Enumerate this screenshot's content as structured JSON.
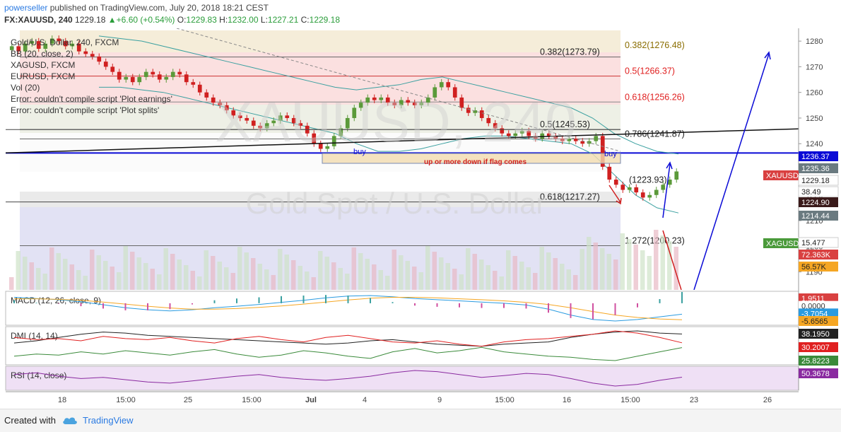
{
  "header": {
    "user": "powerseller",
    "published_text": "published on TradingView.com, July 20, 2018 18:21 CEST",
    "symbol": "FX:XAUUSD, 240",
    "last": "1229.18",
    "change": "+6.60 (+0.54%)",
    "o_label": "O:",
    "o": "1229.83",
    "h_label": "H:",
    "h": "1232.00",
    "l_label": "L:",
    "l": "1227.21",
    "c_label": "C:",
    "c": "1229.18"
  },
  "legend": [
    "Gold/U.S. Dollar, 240, FXCM",
    "BB (20, close, 2)",
    "XAGUSD, FXCM",
    "EURUSD, FXCM",
    "Vol (20)",
    "Error: couldn't compile script 'Plot earnings'",
    "Error: couldn't compile script 'Plot splits'"
  ],
  "watermark": {
    "symbol": "XAUUSD, 240",
    "name": "Gold Spot / U.S. Dollar"
  },
  "annotations": {
    "buy_1": "buy",
    "buy_2": "buy",
    "flag_note": "up or more down if flag comes"
  },
  "footer": {
    "created_with": "Created with",
    "brand": "TradingView"
  },
  "colors": {
    "up": "#5b9a3a",
    "down": "#d02020",
    "accent_blue": "#0a0ad6",
    "bb": "#3aa0a0"
  },
  "chart_data": [
    {
      "type": "candlestick",
      "title": "Gold/U.S. Dollar, 240, FXCM",
      "ylim": [
        1183,
        1285
      ],
      "y_ticks": [
        1190,
        1200,
        1210,
        1220,
        1230,
        1240,
        1250,
        1260,
        1270,
        1280
      ],
      "x_ticks": [
        "18",
        "15:00",
        "25",
        "15:00",
        "Jul",
        "4",
        "9",
        "15:00",
        "16",
        "15:00",
        "23",
        "26"
      ],
      "close": [
        1278,
        1276,
        1279,
        1280,
        1277,
        1279,
        1281,
        1280,
        1278,
        1279,
        1276,
        1275,
        1274,
        1272,
        1270,
        1268,
        1265,
        1266,
        1264,
        1266,
        1268,
        1267,
        1265,
        1266,
        1268,
        1267,
        1264,
        1263,
        1260,
        1258,
        1256,
        1255,
        1253,
        1251,
        1250,
        1249,
        1247,
        1246,
        1248,
        1249,
        1251,
        1250,
        1248,
        1247,
        1244,
        1240,
        1238,
        1239,
        1243,
        1246,
        1250,
        1254,
        1256,
        1258,
        1257,
        1258,
        1256,
        1255,
        1257,
        1256,
        1255,
        1256,
        1258,
        1262,
        1264,
        1262,
        1258,
        1254,
        1252,
        1253,
        1250,
        1248,
        1246,
        1244,
        1243,
        1244,
        1245,
        1243,
        1242,
        1244,
        1243,
        1242,
        1241,
        1242,
        1241,
        1240,
        1241,
        1243,
        1231,
        1226,
        1224,
        1222,
        1223,
        1221,
        1219,
        1220,
        1222,
        1224,
        1226,
        1229.18
      ],
      "bollinger": {
        "upper": [
          1282,
          1281,
          1280,
          1278,
          1276,
          1274,
          1272,
          1270,
          1268,
          1266,
          1264,
          1262,
          1261,
          1262,
          1263,
          1265,
          1266,
          1264,
          1262,
          1260,
          1258,
          1256,
          1254,
          1250,
          1244,
          1240,
          1237,
          1236
        ],
        "lower": [
          1262,
          1262,
          1261,
          1260,
          1258,
          1256,
          1254,
          1252,
          1250,
          1248,
          1246,
          1244,
          1240,
          1237,
          1237,
          1238,
          1240,
          1242,
          1243,
          1243,
          1242,
          1241,
          1240,
          1236,
          1228,
          1220,
          1215,
          1213
        ]
      },
      "fibonacci_levels": [
        {
          "label": "0.382(1273.79)",
          "value": 1273.79
        },
        {
          "label": "0.382(1276.48)",
          "value": 1276.48
        },
        {
          "label": "0.5(1266.37)",
          "value": 1266.37
        },
        {
          "label": "0.618(1256.26)",
          "value": 1256.26
        },
        {
          "label": "0.5(1245.53)",
          "value": 1245.53
        },
        {
          "label": "0.786(1241.87)",
          "value": 1241.87
        },
        {
          "label": "(1223.93)",
          "value": 1223.93
        },
        {
          "label": "0.618(1217.27)",
          "value": 1217.27
        },
        {
          "label": "1.272(1200.23)",
          "value": 1200.23
        }
      ],
      "horizontal_line": 1236.37,
      "price_labels": [
        {
          "text": "1236.37",
          "kind": "blue"
        },
        {
          "text": "1235.36",
          "kind": "gray"
        },
        {
          "text": "XAUUSD",
          "kind": "red"
        },
        {
          "text": "1229.18",
          "kind": "white"
        },
        {
          "text": "38.49",
          "kind": "white"
        },
        {
          "text": "1224.90",
          "kind": "dark"
        },
        {
          "text": "1214.44",
          "kind": "gray"
        },
        {
          "text": "XAGUSD",
          "kind": "green"
        },
        {
          "text": "15.477",
          "kind": "white"
        },
        {
          "text": "72.363K",
          "kind": "red"
        },
        {
          "text": "56.57K",
          "kind": "orange"
        }
      ]
    },
    {
      "type": "line",
      "title": "MACD (12, 26, close, 9)",
      "value_labels": [
        "1.9511",
        "0.0000",
        "-3.7054",
        "-5.6565"
      ],
      "macd": [
        2,
        1.6,
        1.2,
        0.5,
        -0.5,
        -1.5,
        -2.2,
        -2.6,
        -2.2,
        -1.5,
        -1,
        -0.4,
        0.3,
        1,
        1.8,
        2.4,
        2.6,
        2.2,
        1.6,
        1.2,
        0.8,
        0.4,
        0,
        -0.6,
        -2,
        -4,
        -5.5,
        -6,
        -5.5,
        -4.6,
        -3.7
      ],
      "signal": [
        1.5,
        1.5,
        1.3,
        1,
        0.4,
        -0.3,
        -1,
        -1.6,
        -2,
        -2,
        -1.8,
        -1.4,
        -0.9,
        -0.3,
        0.4,
        1.1,
        1.7,
        2,
        2,
        1.8,
        1.5,
        1.2,
        0.8,
        0.3,
        -0.4,
        -1.5,
        -2.8,
        -4,
        -4.8,
        -5.3,
        -5.6
      ]
    },
    {
      "type": "line",
      "title": "DMI (14, 14)",
      "value_labels": [
        "38.1950",
        "30.2007",
        "25.8223"
      ],
      "adx": [
        30,
        32,
        35,
        38,
        40,
        39,
        37,
        36,
        35,
        34,
        33,
        32,
        31,
        30,
        29,
        30,
        32,
        33,
        31,
        29,
        28,
        27,
        29,
        30,
        31,
        35,
        38,
        40,
        41,
        39,
        38.2
      ],
      "plus_di": [
        35,
        33,
        34,
        32,
        36,
        34,
        33,
        35,
        32,
        30,
        34,
        36,
        33,
        31,
        35,
        37,
        34,
        31,
        30,
        32,
        29,
        27,
        31,
        33,
        34,
        36,
        38,
        41,
        39,
        35,
        30.2
      ],
      "minus_di": [
        18,
        20,
        19,
        22,
        20,
        23,
        21,
        19,
        22,
        24,
        20,
        17,
        19,
        23,
        21,
        18,
        16,
        22,
        25,
        21,
        23,
        26,
        22,
        20,
        18,
        17,
        15,
        14,
        18,
        22,
        25.8
      ]
    },
    {
      "type": "line",
      "title": "RSI (14, close)",
      "value_labels": [
        "50.3678"
      ],
      "rsi": [
        55,
        58,
        52,
        48,
        50,
        46,
        42,
        40,
        44,
        48,
        52,
        55,
        50,
        47,
        45,
        48,
        52,
        58,
        62,
        60,
        55,
        50,
        53,
        57,
        55,
        48,
        40,
        35,
        38,
        45,
        50.37
      ]
    }
  ]
}
